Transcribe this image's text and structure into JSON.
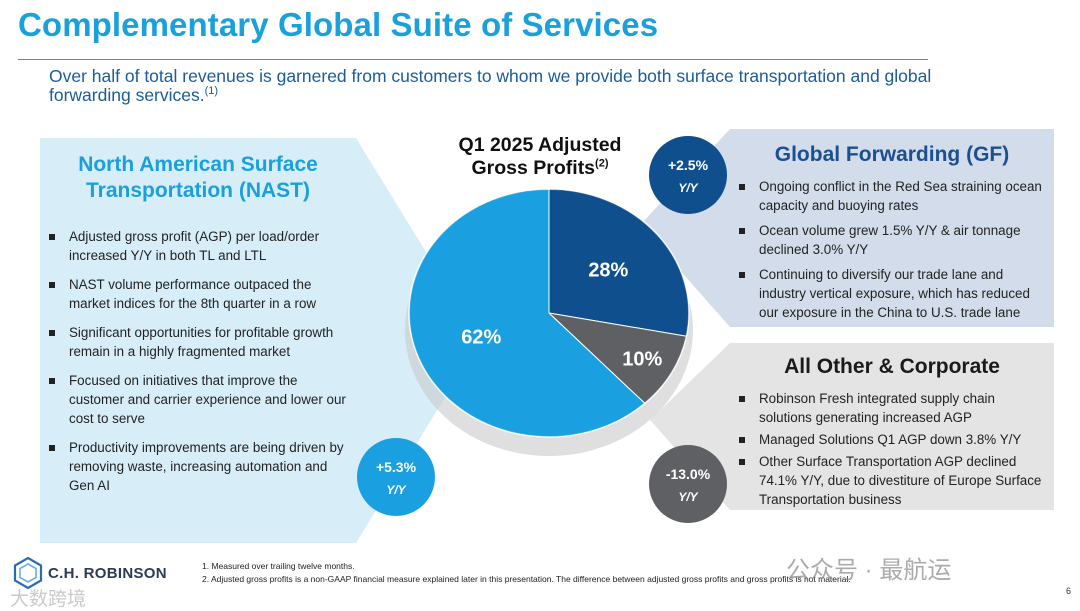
{
  "header": {
    "title": "Complementary Global Suite of Services",
    "subtitle": "Over half of total revenues is garnered from customers to whom we provide both surface transportation and global forwarding services.",
    "subtitle_note": "(1)"
  },
  "chart_data": {
    "type": "pie",
    "title": "Q1 2025 Adjusted Gross Profits",
    "title_note": "(2)",
    "categories": [
      "North American Surface Transportation (NAST)",
      "Global Forwarding (GF)",
      "All Other & Corporate"
    ],
    "values": [
      62,
      28,
      10
    ],
    "labels": [
      "62%",
      "28%",
      "10%"
    ],
    "colors": [
      "#1aa0e0",
      "#0f4f8e",
      "#5e6064"
    ],
    "growth": [
      "+5.3%",
      "+2.5%",
      "-13.0%"
    ],
    "growth_unit": "Y/Y"
  },
  "colors": {
    "accent": "#1aa0db",
    "navy": "#1b4f8f",
    "nast_panel": "#d7eef9",
    "gf_panel": "#d2dcea",
    "corp_panel": "#e4e4e4"
  },
  "nast": {
    "title_line1": "North American Surface",
    "title_line2": "Transportation (NAST)",
    "bullets": [
      "Adjusted gross profit (AGP) per load/order increased Y/Y in both TL and LTL",
      "NAST volume performance outpaced the market indices for the 8th quarter in a row",
      "Significant opportunities for profitable growth remain in a highly fragmented market",
      "Focused on initiatives that improve the customer and carrier experience and lower our cost to serve",
      "Productivity improvements are being driven by removing waste, increasing automation and Gen AI"
    ]
  },
  "gf": {
    "title": "Global Forwarding (GF)",
    "bullets": [
      "Ongoing conflict in the Red Sea straining ocean capacity and buoying rates",
      "Ocean volume grew 1.5% Y/Y & air tonnage declined 3.0% Y/Y",
      "Continuing to diversify our trade lane and industry vertical exposure, which has reduced our exposure in the China to U.S. trade lane"
    ]
  },
  "corp": {
    "title": "All Other & Corporate",
    "bullets": [
      "Robinson Fresh integrated supply chain solutions generating increased AGP",
      "Managed Solutions Q1 AGP down 3.8% Y/Y",
      "Other Surface Transportation AGP declined 74.1% Y/Y, due to divestiture of Europe Surface Transportation business"
    ]
  },
  "footnotes": [
    "1.   Measured over trailing twelve months.",
    "2.   Adjusted gross profits is a non-GAAP financial measure explained later in this presentation. The difference between adjusted gross profits and gross profits is not material."
  ],
  "logo": {
    "text": "C.H. ROBINSON",
    "icon": "hexagon-logo-icon"
  },
  "page_number": "6",
  "watermarks": {
    "wechat": "公众号 · 最航运",
    "corner": "大数跨境"
  }
}
